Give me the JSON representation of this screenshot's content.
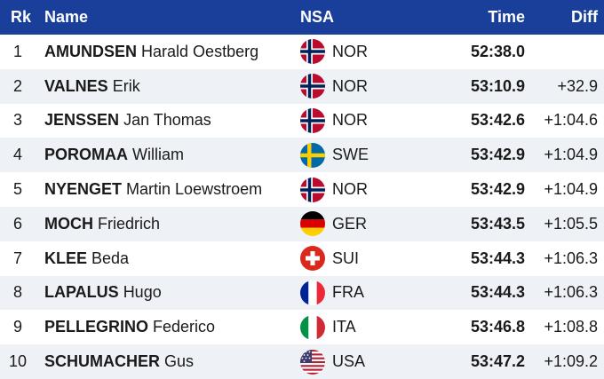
{
  "header": {
    "rank": "Rk",
    "name": "Name",
    "nsa": "NSA",
    "time": "Time",
    "diff": "Diff"
  },
  "rows": [
    {
      "rank": "1",
      "last": "AMUNDSEN",
      "first": "Harald Oestberg",
      "nsa": "NOR",
      "flag": "norway-flag-icon",
      "time": "52:38.0",
      "diff": ""
    },
    {
      "rank": "2",
      "last": "VALNES",
      "first": "Erik",
      "nsa": "NOR",
      "flag": "norway-flag-icon",
      "time": "53:10.9",
      "diff": "+32.9"
    },
    {
      "rank": "3",
      "last": "JENSSEN",
      "first": "Jan Thomas",
      "nsa": "NOR",
      "flag": "norway-flag-icon",
      "time": "53:42.6",
      "diff": "+1:04.6"
    },
    {
      "rank": "4",
      "last": "POROMAA",
      "first": "William",
      "nsa": "SWE",
      "flag": "sweden-flag-icon",
      "time": "53:42.9",
      "diff": "+1:04.9"
    },
    {
      "rank": "5",
      "last": "NYENGET",
      "first": "Martin Loewstroem",
      "nsa": "NOR",
      "flag": "norway-flag-icon",
      "time": "53:42.9",
      "diff": "+1:04.9"
    },
    {
      "rank": "6",
      "last": "MOCH",
      "first": "Friedrich",
      "nsa": "GER",
      "flag": "germany-flag-icon",
      "time": "53:43.5",
      "diff": "+1:05.5"
    },
    {
      "rank": "7",
      "last": "KLEE",
      "first": "Beda",
      "nsa": "SUI",
      "flag": "switzerland-flag-icon",
      "time": "53:44.3",
      "diff": "+1:06.3"
    },
    {
      "rank": "8",
      "last": "LAPALUS",
      "first": "Hugo",
      "nsa": "FRA",
      "flag": "france-flag-icon",
      "time": "53:44.3",
      "diff": "+1:06.3"
    },
    {
      "rank": "9",
      "last": "PELLEGRINO",
      "first": "Federico",
      "nsa": "ITA",
      "flag": "italy-flag-icon",
      "time": "53:46.8",
      "diff": "+1:08.8"
    },
    {
      "rank": "10",
      "last": "SCHUMACHER",
      "first": "Gus",
      "nsa": "USA",
      "flag": "usa-flag-icon",
      "time": "53:47.2",
      "diff": "+1:09.2"
    }
  ],
  "colors": {
    "header_bg": "#1a3f9a",
    "alt_row_bg": "#eef1f6"
  }
}
